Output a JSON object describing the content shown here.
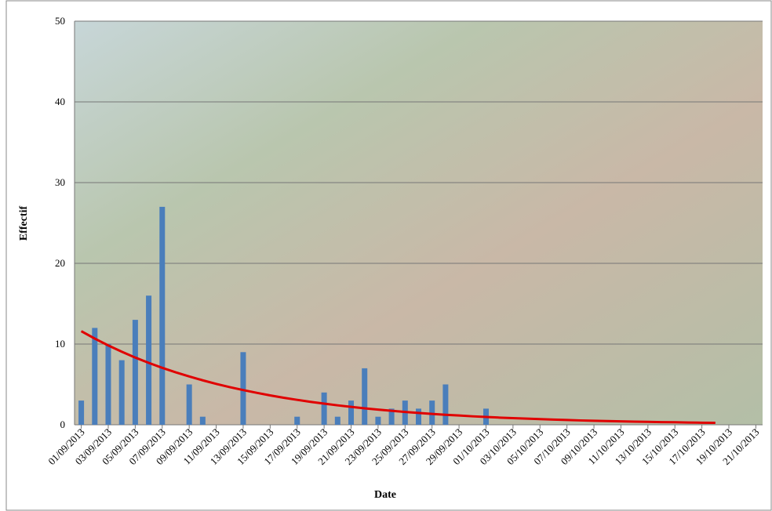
{
  "chart_data": {
    "type": "bar",
    "x_label": "Date",
    "y_label": "Effectif",
    "categories": [
      "01/09/2013",
      null,
      "03/09/2013",
      null,
      "05/09/2013",
      null,
      "07/09/2013",
      null,
      "09/09/2013",
      null,
      "11/09/2013",
      null,
      "13/09/2013",
      null,
      "15/09/2013",
      null,
      "17/09/2013",
      null,
      "19/09/2013",
      null,
      "21/09/2013",
      null,
      "23/09/2013",
      null,
      "25/09/2013",
      null,
      "27/09/2013",
      null,
      "29/09/2013",
      null,
      "01/10/2013",
      null,
      "03/10/2013",
      null,
      "05/10/2013",
      null,
      "07/10/2013",
      null,
      "09/10/2013",
      null,
      "11/10/2013",
      null,
      "13/10/2013",
      null,
      "15/10/2013",
      null,
      "17/10/2013",
      null,
      "19/10/2013",
      null,
      "21/10/2013"
    ],
    "series": [
      {
        "color": "#4a7ebb",
        "values": [
          3,
          12,
          10,
          8,
          13,
          16,
          27,
          0,
          5,
          1,
          0,
          0,
          9,
          0,
          0,
          0,
          1,
          0,
          4,
          1,
          3,
          7,
          1,
          2,
          3,
          2,
          3,
          5,
          0,
          0,
          2,
          0,
          0,
          0,
          0,
          0,
          0,
          0,
          0,
          0,
          0,
          0,
          0,
          0,
          0,
          0,
          0,
          0,
          0,
          0,
          0
        ]
      },
      {
        "type": "line",
        "color": "#e00000",
        "values": [
          11.6,
          10.68,
          9.83,
          9.05,
          8.33,
          7.67,
          7.06,
          6.5,
          5.99,
          5.51,
          5.07,
          4.67,
          4.3,
          3.96,
          3.64,
          3.35,
          3.09,
          2.84,
          2.62,
          2.41,
          2.22,
          2.04,
          1.88,
          1.73,
          1.59,
          1.47,
          1.35,
          1.24,
          1.15,
          1.05,
          0.97,
          0.89,
          0.82,
          0.76,
          0.7,
          0.64,
          0.59,
          0.54,
          0.5,
          0.46,
          0.43,
          0.39,
          0.36,
          0.33,
          0.31,
          0.28,
          0.26,
          0.24,
          null,
          null,
          null
        ]
      }
    ],
    "ylim": [
      0,
      50
    ],
    "yticks": [
      0,
      10,
      20,
      30,
      40,
      50
    ],
    "grid": true
  }
}
